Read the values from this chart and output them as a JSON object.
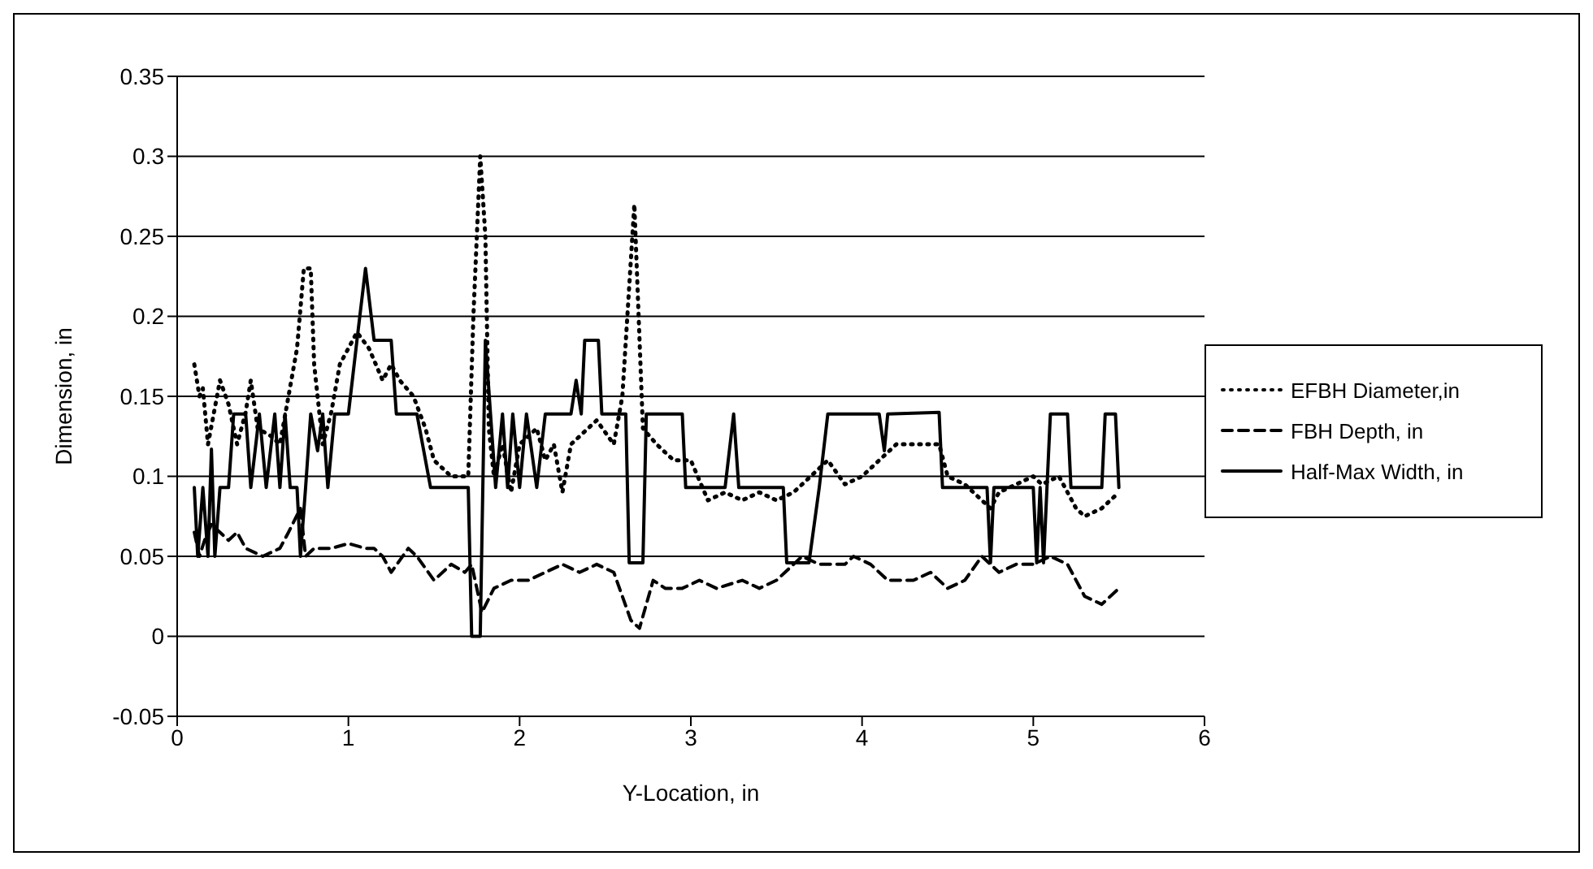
{
  "chart_data": {
    "type": "line",
    "xlabel": "Y-Location, in",
    "ylabel": "Dimension, in",
    "xlim": [
      0,
      6
    ],
    "xticks": [
      0,
      1,
      2,
      3,
      4,
      5,
      6
    ],
    "ylim": [
      -0.05,
      0.35
    ],
    "yticks": [
      -0.05,
      0,
      0.05,
      0.1,
      0.15,
      0.2,
      0.25,
      0.3,
      0.35
    ],
    "grid": "y",
    "legend": "right",
    "marker": "none",
    "series": [
      {
        "name": "EFBH Diameter,in",
        "color": "#000000",
        "line_style": "dotted",
        "x": [
          0.1,
          0.13,
          0.15,
          0.18,
          0.25,
          0.3,
          0.35,
          0.4,
          0.43,
          0.47,
          0.55,
          0.6,
          0.65,
          0.7,
          0.74,
          0.78,
          0.8,
          0.85,
          0.9,
          0.95,
          1.0,
          1.05,
          1.12,
          1.2,
          1.25,
          1.3,
          1.38,
          1.45,
          1.5,
          1.6,
          1.65,
          1.7,
          1.73,
          1.77,
          1.8,
          1.82,
          1.85,
          1.9,
          1.95,
          2.0,
          2.1,
          2.15,
          2.2,
          2.25,
          2.3,
          2.4,
          2.45,
          2.55,
          2.6,
          2.67,
          2.72,
          2.8,
          2.9,
          3.0,
          3.1,
          3.2,
          3.3,
          3.4,
          3.5,
          3.6,
          3.7,
          3.8,
          3.9,
          4.0,
          4.1,
          4.2,
          4.3,
          4.4,
          4.45,
          4.5,
          4.6,
          4.7,
          4.75,
          4.8,
          4.9,
          5.0,
          5.05,
          5.15,
          5.25,
          5.3,
          5.4,
          5.5
        ],
        "values": [
          0.17,
          0.15,
          0.155,
          0.12,
          0.16,
          0.145,
          0.12,
          0.14,
          0.16,
          0.13,
          0.125,
          0.12,
          0.15,
          0.18,
          0.23,
          0.23,
          0.17,
          0.12,
          0.14,
          0.17,
          0.18,
          0.19,
          0.18,
          0.16,
          0.17,
          0.16,
          0.15,
          0.13,
          0.11,
          0.1,
          0.1,
          0.1,
          0.2,
          0.3,
          0.25,
          0.13,
          0.1,
          0.12,
          0.09,
          0.12,
          0.13,
          0.11,
          0.12,
          0.09,
          0.12,
          0.13,
          0.135,
          0.12,
          0.15,
          0.27,
          0.13,
          0.12,
          0.11,
          0.11,
          0.085,
          0.09,
          0.085,
          0.09,
          0.085,
          0.09,
          0.1,
          0.11,
          0.095,
          0.1,
          0.11,
          0.12,
          0.12,
          0.12,
          0.12,
          0.1,
          0.095,
          0.085,
          0.08,
          0.09,
          0.095,
          0.1,
          0.095,
          0.1,
          0.08,
          0.075,
          0.08,
          0.09
        ]
      },
      {
        "name": "FBH Depth, in",
        "color": "#000000",
        "line_style": "dashed",
        "x": [
          0.1,
          0.13,
          0.16,
          0.2,
          0.25,
          0.3,
          0.35,
          0.4,
          0.5,
          0.6,
          0.65,
          0.72,
          0.75,
          0.8,
          0.9,
          1.0,
          1.1,
          1.15,
          1.2,
          1.25,
          1.35,
          1.4,
          1.5,
          1.6,
          1.68,
          1.72,
          1.78,
          1.85,
          1.95,
          2.05,
          2.15,
          2.25,
          2.35,
          2.45,
          2.55,
          2.65,
          2.7,
          2.78,
          2.85,
          2.95,
          3.05,
          3.15,
          3.3,
          3.4,
          3.5,
          3.6,
          3.65,
          3.75,
          3.9,
          3.95,
          4.05,
          4.15,
          4.3,
          4.4,
          4.5,
          4.6,
          4.7,
          4.8,
          4.9,
          5.0,
          5.1,
          5.2,
          5.3,
          5.4,
          5.5
        ],
        "values": [
          0.065,
          0.05,
          0.06,
          0.07,
          0.065,
          0.06,
          0.065,
          0.055,
          0.05,
          0.055,
          0.065,
          0.08,
          0.05,
          0.055,
          0.055,
          0.058,
          0.055,
          0.055,
          0.05,
          0.04,
          0.055,
          0.05,
          0.035,
          0.045,
          0.04,
          0.045,
          0.015,
          0.03,
          0.035,
          0.035,
          0.04,
          0.045,
          0.04,
          0.045,
          0.04,
          0.01,
          0.005,
          0.035,
          0.03,
          0.03,
          0.035,
          0.03,
          0.035,
          0.03,
          0.035,
          0.045,
          0.05,
          0.045,
          0.045,
          0.05,
          0.045,
          0.035,
          0.035,
          0.04,
          0.03,
          0.035,
          0.05,
          0.04,
          0.045,
          0.045,
          0.05,
          0.045,
          0.025,
          0.02,
          0.03
        ]
      },
      {
        "name": "Half-Max Width, in",
        "color": "#000000",
        "line_style": "solid",
        "x": [
          0.1,
          0.12,
          0.15,
          0.18,
          0.2,
          0.22,
          0.25,
          0.3,
          0.33,
          0.4,
          0.43,
          0.48,
          0.52,
          0.57,
          0.6,
          0.63,
          0.66,
          0.7,
          0.72,
          0.75,
          0.78,
          0.82,
          0.85,
          0.88,
          0.92,
          1.0,
          1.05,
          1.1,
          1.15,
          1.25,
          1.28,
          1.4,
          1.48,
          1.7,
          1.72,
          1.77,
          1.8,
          1.83,
          1.86,
          1.9,
          1.93,
          1.96,
          2.0,
          2.04,
          2.1,
          2.15,
          2.3,
          2.33,
          2.36,
          2.38,
          2.46,
          2.48,
          2.62,
          2.64,
          2.72,
          2.74,
          2.95,
          2.97,
          3.2,
          3.25,
          3.28,
          3.54,
          3.56,
          3.69,
          3.75,
          3.8,
          4.1,
          4.13,
          4.15,
          4.45,
          4.47,
          4.73,
          4.75,
          4.77,
          5.0,
          5.02,
          5.04,
          5.06,
          5.08,
          5.1,
          5.2,
          5.22,
          5.4,
          5.42,
          5.48,
          5.5
        ],
        "values": [
          0.093,
          0.05,
          0.093,
          0.05,
          0.117,
          0.05,
          0.093,
          0.093,
          0.139,
          0.139,
          0.093,
          0.139,
          0.093,
          0.139,
          0.093,
          0.139,
          0.093,
          0.093,
          0.05,
          0.093,
          0.139,
          0.116,
          0.139,
          0.093,
          0.139,
          0.139,
          0.185,
          0.23,
          0.185,
          0.185,
          0.139,
          0.139,
          0.093,
          0.093,
          0,
          0,
          0.185,
          0.139,
          0.093,
          0.139,
          0.093,
          0.139,
          0.093,
          0.139,
          0.093,
          0.139,
          0.139,
          0.16,
          0.139,
          0.185,
          0.185,
          0.139,
          0.139,
          0.046,
          0.046,
          0.139,
          0.139,
          0.093,
          0.093,
          0.139,
          0.093,
          0.093,
          0.046,
          0.046,
          0.093,
          0.139,
          0.139,
          0.116,
          0.139,
          0.14,
          0.093,
          0.093,
          0.046,
          0.093,
          0.093,
          0.046,
          0.093,
          0.046,
          0.093,
          0.139,
          0.139,
          0.093,
          0.093,
          0.139,
          0.139,
          0.093
        ]
      }
    ]
  }
}
